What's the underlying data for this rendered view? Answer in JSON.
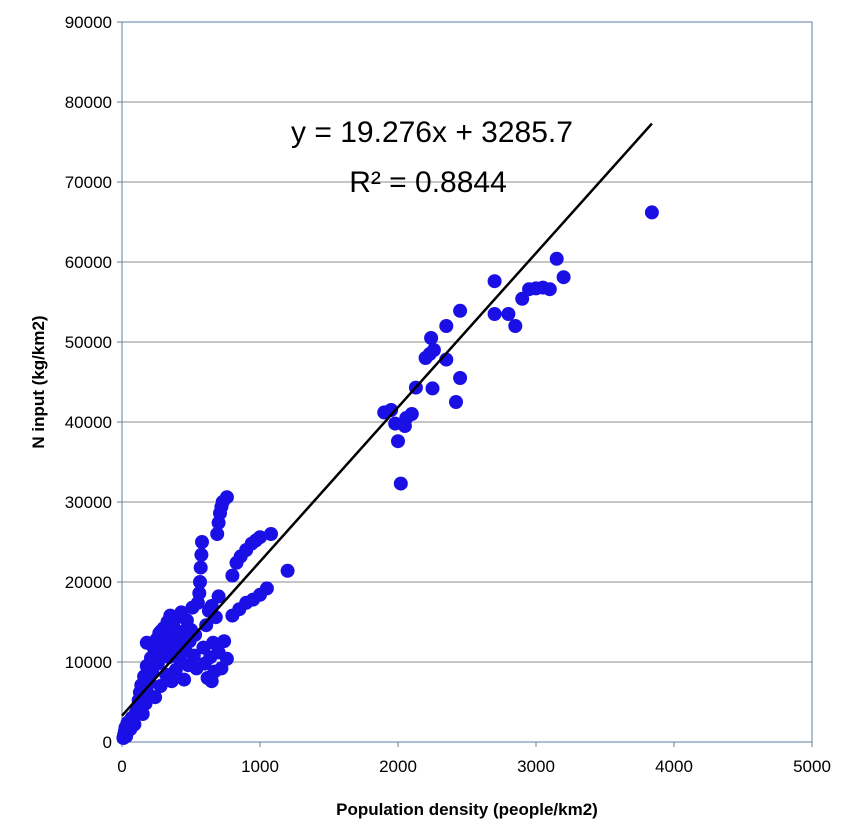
{
  "chart_data": {
    "type": "scatter",
    "xlabel": "Population density (people/km2)",
    "ylabel": "N input (kg/km2)",
    "xlim": [
      0,
      5000
    ],
    "ylim": [
      0,
      90000
    ],
    "x_ticks": [
      "0",
      "1000",
      "2000",
      "3000",
      "4000",
      "5000"
    ],
    "y_ticks": [
      "0",
      "10000",
      "20000",
      "30000",
      "40000",
      "50000",
      "60000",
      "70000",
      "80000",
      "90000"
    ],
    "grid": "horizontal",
    "legend": "none",
    "marker_color": "#1a10e6",
    "trendline": {
      "type": "linear",
      "slope": 19.276,
      "intercept": 3285.7,
      "x_range": [
        0,
        3840
      ],
      "color": "#000000",
      "equation": "y = 19.276x + 3285.7",
      "r_squared": "R² = 0.8844"
    },
    "series": [
      {
        "points": [
          [
            10,
            500
          ],
          [
            15,
            900
          ],
          [
            20,
            1300
          ],
          [
            30,
            700
          ],
          [
            25,
            1800
          ],
          [
            40,
            2400
          ],
          [
            60,
            1600
          ],
          [
            70,
            3000
          ],
          [
            90,
            2200
          ],
          [
            100,
            3600
          ],
          [
            110,
            4200
          ],
          [
            120,
            5200
          ],
          [
            130,
            6200
          ],
          [
            140,
            7100
          ],
          [
            150,
            3500
          ],
          [
            160,
            8200
          ],
          [
            170,
            4800
          ],
          [
            180,
            9500
          ],
          [
            190,
            6000
          ],
          [
            200,
            7400
          ],
          [
            210,
            10500
          ],
          [
            220,
            8600
          ],
          [
            230,
            11800
          ],
          [
            240,
            5600
          ],
          [
            250,
            12800
          ],
          [
            260,
            9800
          ],
          [
            270,
            13600
          ],
          [
            280,
            7000
          ],
          [
            290,
            11000
          ],
          [
            300,
            14200
          ],
          [
            310,
            12200
          ],
          [
            320,
            8400
          ],
          [
            330,
            15000
          ],
          [
            340,
            10600
          ],
          [
            350,
            13200
          ],
          [
            360,
            7600
          ],
          [
            370,
            14600
          ],
          [
            380,
            11600
          ],
          [
            390,
            9000
          ],
          [
            400,
            15600
          ],
          [
            410,
            12800
          ],
          [
            420,
            10200
          ],
          [
            430,
            16200
          ],
          [
            440,
            13800
          ],
          [
            450,
            7800
          ],
          [
            460,
            11400
          ],
          [
            470,
            15200
          ],
          [
            480,
            9600
          ],
          [
            490,
            12600
          ],
          [
            500,
            14000
          ],
          [
            510,
            16800
          ],
          [
            520,
            10800
          ],
          [
            530,
            13400
          ],
          [
            540,
            9200
          ],
          [
            550,
            17400
          ],
          [
            560,
            18600
          ],
          [
            565,
            20000
          ],
          [
            570,
            21800
          ],
          [
            575,
            23400
          ],
          [
            580,
            25000
          ],
          [
            590,
            11800
          ],
          [
            600,
            9800
          ],
          [
            610,
            14600
          ],
          [
            620,
            8000
          ],
          [
            630,
            16400
          ],
          [
            640,
            10600
          ],
          [
            650,
            7600
          ],
          [
            660,
            12400
          ],
          [
            670,
            8800
          ],
          [
            680,
            15600
          ],
          [
            690,
            26000
          ],
          [
            700,
            27400
          ],
          [
            710,
            28600
          ],
          [
            720,
            29400
          ],
          [
            730,
            30000
          ],
          [
            760,
            30600
          ],
          [
            700,
            11200
          ],
          [
            720,
            9200
          ],
          [
            740,
            12600
          ],
          [
            760,
            10400
          ],
          [
            800,
            20800
          ],
          [
            830,
            22400
          ],
          [
            860,
            23200
          ],
          [
            900,
            24000
          ],
          [
            940,
            24800
          ],
          [
            970,
            25200
          ],
          [
            1000,
            25600
          ],
          [
            1080,
            26000
          ],
          [
            800,
            15800
          ],
          [
            850,
            16600
          ],
          [
            900,
            17400
          ],
          [
            950,
            17800
          ],
          [
            1000,
            18400
          ],
          [
            1050,
            19200
          ],
          [
            1200,
            21400
          ],
          [
            700,
            18200
          ],
          [
            650,
            17000
          ],
          [
            180,
            12400
          ],
          [
            280,
            13800
          ],
          [
            350,
            15800
          ],
          [
            1900,
            41200
          ],
          [
            1950,
            41500
          ],
          [
            1980,
            39800
          ],
          [
            2000,
            37600
          ],
          [
            2020,
            32300
          ],
          [
            2050,
            39500
          ],
          [
            2060,
            40500
          ],
          [
            2100,
            41000
          ],
          [
            2130,
            44300
          ],
          [
            2200,
            48000
          ],
          [
            2230,
            48500
          ],
          [
            2240,
            50500
          ],
          [
            2260,
            49000
          ],
          [
            2250,
            44200
          ],
          [
            2350,
            52000
          ],
          [
            2350,
            47800
          ],
          [
            2420,
            42500
          ],
          [
            2450,
            45500
          ],
          [
            2450,
            53900
          ],
          [
            2700,
            57600
          ],
          [
            2700,
            53500
          ],
          [
            2800,
            53500
          ],
          [
            2850,
            52000
          ],
          [
            2900,
            55400
          ],
          [
            2950,
            56600
          ],
          [
            3000,
            56700
          ],
          [
            3050,
            56800
          ],
          [
            3100,
            56600
          ],
          [
            3150,
            60400
          ],
          [
            3200,
            58100
          ],
          [
            3840,
            66200
          ]
        ]
      }
    ]
  }
}
